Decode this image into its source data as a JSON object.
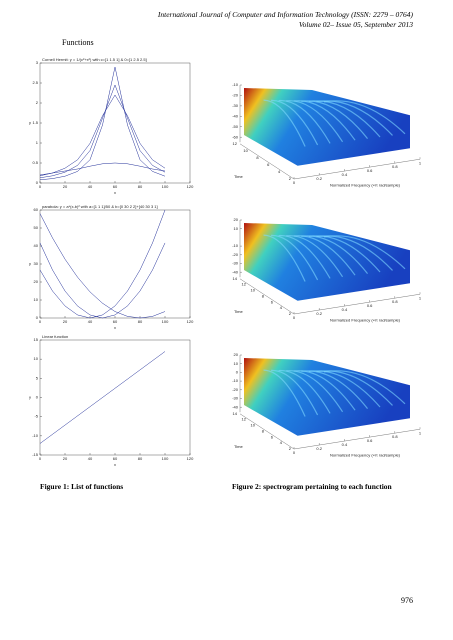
{
  "header": {
    "journal": "International Journal of Computer and Information Technology (ISSN: 2279 – 0764)",
    "issue": "Volume 02– Issue 05, September 2013"
  },
  "section": "Functions",
  "figure1": {
    "caption": "Figure 1: List of functions",
    "plots": [
      {
        "title": "Cornell Hermit: y = 1/(c²+x²) with c=[1 1.5 1] & 0=[1 2.5 2.5]",
        "xlabel": "x",
        "ylabel": "y",
        "color": "#23309a",
        "xlim": [
          0,
          120
        ],
        "ylim": [
          0,
          3
        ],
        "xticks": [
          0,
          20,
          40,
          60,
          80,
          100,
          120
        ],
        "yticks": [
          0,
          0.5,
          1,
          1.5,
          2,
          2.5,
          3
        ],
        "x": [
          0,
          10,
          20,
          30,
          40,
          50,
          60,
          70,
          80,
          90,
          100
        ],
        "series": [
          {
            "values": [
              0.08,
              0.11,
              0.17,
              0.29,
              0.58,
              1.45,
              2.9,
              1.45,
              0.58,
              0.29,
              0.17
            ]
          },
          {
            "values": [
              0.13,
              0.18,
              0.27,
              0.44,
              0.81,
              1.62,
              2.45,
              1.62,
              0.81,
              0.44,
              0.27
            ]
          },
          {
            "values": [
              0.18,
              0.25,
              0.37,
              0.58,
              0.99,
              1.68,
              2.2,
              1.68,
              0.99,
              0.58,
              0.37
            ]
          },
          {
            "values": [
              0.2,
              0.25,
              0.3,
              0.35,
              0.42,
              0.48,
              0.5,
              0.48,
              0.42,
              0.35,
              0.3
            ]
          }
        ]
      },
      {
        "title": "parabola: y = a*(x-b)² with a=[1 1 1]/50 & b=[0 30 2 2]+[40 30 3 1]",
        "xlabel": "x",
        "ylabel": "y",
        "color": "#23309a",
        "xlim": [
          0,
          120
        ],
        "ylim": [
          0,
          60
        ],
        "xticks": [
          0,
          20,
          40,
          60,
          80,
          100,
          120
        ],
        "yticks": [
          0,
          10,
          20,
          30,
          40,
          50,
          60
        ],
        "x": [
          0,
          10,
          20,
          30,
          40,
          50,
          60,
          70,
          80,
          90,
          100
        ],
        "series": [
          {
            "values": [
              58,
              44.5,
              32.7,
              22.7,
              14.5,
              8.2,
              3.6,
              0.9,
              0,
              0.9,
              3.6
            ]
          },
          {
            "values": [
              26.7,
              15,
              6.7,
              1.7,
              0,
              1.7,
              6.7,
              15,
              26.7,
              41.7,
              60
            ]
          },
          {
            "values": [
              41.7,
              26.7,
              15,
              6.7,
              1.7,
              0,
              1.7,
              6.7,
              15,
              26.7,
              41.7
            ]
          }
        ]
      },
      {
        "title": "Linear function",
        "xlabel": "x",
        "ylabel": "y",
        "color": "#23309a",
        "xlim": [
          0,
          120
        ],
        "ylim": [
          -15,
          15
        ],
        "xticks": [
          0,
          20,
          40,
          60,
          80,
          100,
          120
        ],
        "yticks": [
          -15,
          -10,
          -5,
          0,
          5,
          10,
          15
        ],
        "x": [
          0,
          100
        ],
        "series": [
          {
            "values": [
              -12,
              12
            ]
          }
        ]
      }
    ]
  },
  "figure2": {
    "caption": "Figure 2: spectrogram pertaining to each function",
    "panels": [
      {
        "zlim": [
          -60,
          -10
        ],
        "zticks": [
          -10,
          -20,
          -30,
          -40,
          -50,
          -60
        ],
        "time_ticks": [
          12,
          10,
          8,
          6,
          4,
          2
        ],
        "freq_ticks": [
          0,
          0.2,
          0.4,
          0.6,
          0.8,
          1
        ],
        "time_label": "Time",
        "freq_label": "Normalized Frequency (×π rad/sample)"
      },
      {
        "zlim": [
          -40,
          20
        ],
        "zticks": [
          20,
          10,
          -10,
          -20,
          -30,
          -40
        ],
        "time_ticks": [
          14,
          12,
          10,
          8,
          6,
          4,
          2
        ],
        "freq_ticks": [
          0,
          0.2,
          0.4,
          0.6,
          0.8,
          1
        ],
        "time_label": "Time",
        "freq_label": "Normalized Frequency (×π rad/sample)"
      },
      {
        "zlim": [
          -40,
          20
        ],
        "zticks": [
          20,
          10,
          0,
          -10,
          -20,
          -30,
          -40
        ],
        "time_ticks": [
          14,
          12,
          10,
          8,
          6,
          4,
          2
        ],
        "freq_ticks": [
          0,
          0.2,
          0.4,
          0.6,
          0.8,
          1
        ],
        "time_label": "Time",
        "freq_label": "Normalized Frequency (×π rad/sample)"
      }
    ]
  },
  "page_number": "976"
}
